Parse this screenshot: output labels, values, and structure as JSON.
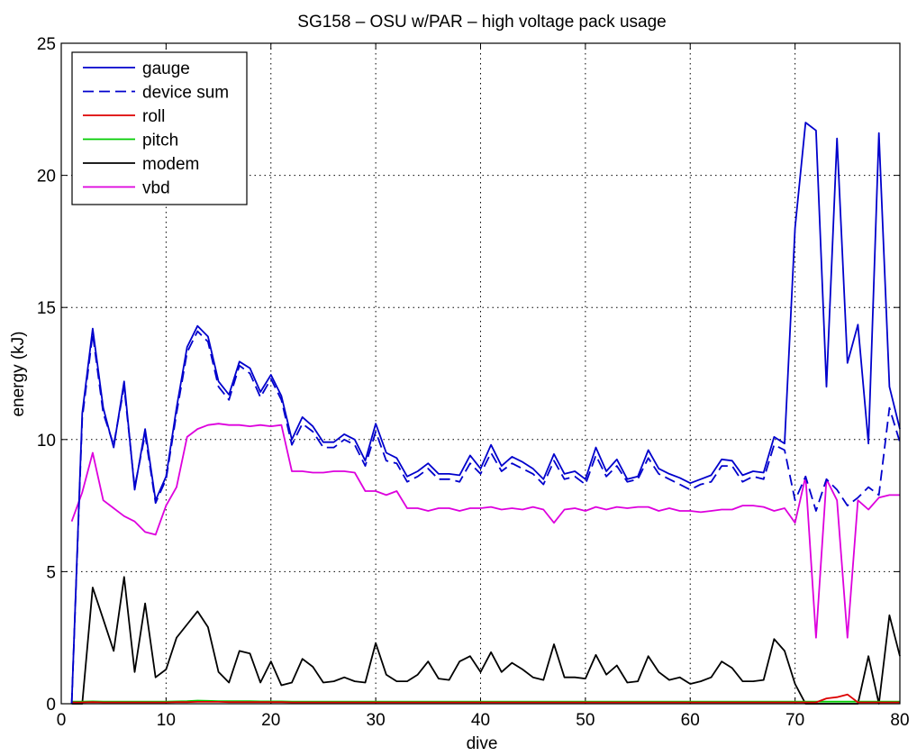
{
  "chart_data": {
    "type": "line",
    "title": "SG158 – OSU w/PAR – high voltage pack usage",
    "xlabel": "dive",
    "ylabel": "energy (kJ)",
    "xlim": [
      0,
      80
    ],
    "ylim": [
      0,
      25
    ],
    "xticks": [
      0,
      10,
      20,
      30,
      40,
      50,
      60,
      70,
      80
    ],
    "yticks": [
      0,
      5,
      10,
      15,
      20,
      25
    ],
    "grid": true,
    "legend_position": "top-left",
    "x": [
      1,
      2,
      3,
      4,
      5,
      6,
      7,
      8,
      9,
      10,
      11,
      12,
      13,
      14,
      15,
      16,
      17,
      18,
      19,
      20,
      21,
      22,
      23,
      24,
      25,
      26,
      27,
      28,
      29,
      30,
      31,
      32,
      33,
      34,
      35,
      36,
      37,
      38,
      39,
      40,
      41,
      42,
      43,
      44,
      45,
      46,
      47,
      48,
      49,
      50,
      51,
      52,
      53,
      54,
      55,
      56,
      57,
      58,
      59,
      60,
      61,
      62,
      63,
      64,
      65,
      66,
      67,
      68,
      69,
      70,
      71,
      72,
      73,
      74,
      75,
      76,
      77,
      78,
      79,
      80
    ],
    "series": [
      {
        "name": "gauge",
        "color": "#0000cc",
        "style": "solid",
        "values": [
          0,
          11,
          14.2,
          11.2,
          9.7,
          12.2,
          8.1,
          10.4,
          7.7,
          8.6,
          11.2,
          13.5,
          14.3,
          13.9,
          12.2,
          11.7,
          12.95,
          12.7,
          11.8,
          12.45,
          11.65,
          10,
          10.85,
          10.5,
          9.9,
          9.9,
          10.2,
          10,
          9.2,
          10.6,
          9.5,
          9.3,
          8.6,
          8.8,
          9.1,
          8.7,
          8.7,
          8.65,
          9.4,
          8.9,
          9.8,
          9,
          9.35,
          9.15,
          8.9,
          8.5,
          9.45,
          8.7,
          8.8,
          8.5,
          9.7,
          8.8,
          9.25,
          8.5,
          8.6,
          9.6,
          8.9,
          8.7,
          8.55,
          8.35,
          8.5,
          8.65,
          9.25,
          9.2,
          8.65,
          8.8,
          8.75,
          10.1,
          9.85,
          18,
          22,
          21.7,
          12,
          21.4,
          12.9,
          14.35,
          9.85,
          21.6,
          12,
          10.4
        ]
      },
      {
        "name": "device sum",
        "color": "#0000cc",
        "style": "dashed",
        "values": [
          0,
          10.8,
          14,
          11,
          9.8,
          12,
          8.2,
          10.2,
          7.6,
          8.5,
          11,
          13.3,
          14.1,
          13.7,
          12,
          11.5,
          12.8,
          12.5,
          11.6,
          12.3,
          11.5,
          9.8,
          10.6,
          10.3,
          9.7,
          9.7,
          10,
          9.8,
          9,
          10.3,
          9.2,
          9.1,
          8.4,
          8.6,
          8.9,
          8.5,
          8.5,
          8.4,
          9.1,
          8.7,
          9.5,
          8.8,
          9.1,
          8.9,
          8.7,
          8.3,
          9.2,
          8.5,
          8.6,
          8.3,
          9.4,
          8.6,
          9,
          8.4,
          8.5,
          9.3,
          8.7,
          8.5,
          8.3,
          8.1,
          8.3,
          8.4,
          9,
          9,
          8.4,
          8.6,
          8.5,
          9.8,
          9.6,
          7.7,
          8.6,
          7.3,
          8.5,
          8.1,
          7.5,
          7.8,
          8.2,
          7.9,
          11.2,
          9.9
        ]
      },
      {
        "name": "roll",
        "color": "#dd0000",
        "style": "solid",
        "values": [
          0.05,
          0.05,
          0.06,
          0.05,
          0.05,
          0.05,
          0.05,
          0.05,
          0.05,
          0.05,
          0.06,
          0.06,
          0.07,
          0.07,
          0.07,
          0.06,
          0.06,
          0.06,
          0.06,
          0.06,
          0.06,
          0.05,
          0.05,
          0.05,
          0.05,
          0.05,
          0.05,
          0.05,
          0.05,
          0.05,
          0.05,
          0.05,
          0.05,
          0.05,
          0.05,
          0.05,
          0.05,
          0.05,
          0.05,
          0.05,
          0.05,
          0.05,
          0.05,
          0.05,
          0.05,
          0.05,
          0.05,
          0.05,
          0.05,
          0.05,
          0.05,
          0.05,
          0.05,
          0.05,
          0.05,
          0.05,
          0.05,
          0.05,
          0.05,
          0.05,
          0.05,
          0.05,
          0.05,
          0.05,
          0.05,
          0.05,
          0.05,
          0.05,
          0.05,
          0.05,
          0.05,
          0.05,
          0.2,
          0.25,
          0.35,
          0.05,
          0.05,
          0.05,
          0.05,
          0.05
        ]
      },
      {
        "name": "pitch",
        "color": "#00cc00",
        "style": "solid",
        "values": [
          0.08,
          0.08,
          0.09,
          0.08,
          0.08,
          0.08,
          0.08,
          0.08,
          0.08,
          0.08,
          0.09,
          0.1,
          0.12,
          0.11,
          0.1,
          0.1,
          0.1,
          0.1,
          0.09,
          0.09,
          0.09,
          0.08,
          0.08,
          0.08,
          0.08,
          0.08,
          0.08,
          0.08,
          0.08,
          0.08,
          0.08,
          0.08,
          0.08,
          0.08,
          0.08,
          0.08,
          0.08,
          0.08,
          0.08,
          0.08,
          0.08,
          0.08,
          0.08,
          0.08,
          0.08,
          0.08,
          0.08,
          0.08,
          0.08,
          0.08,
          0.08,
          0.08,
          0.08,
          0.08,
          0.08,
          0.08,
          0.08,
          0.08,
          0.08,
          0.08,
          0.08,
          0.08,
          0.08,
          0.08,
          0.08,
          0.08,
          0.08,
          0.08,
          0.08,
          0.08,
          0.08,
          0.08,
          0.08,
          0.08,
          0.08,
          0.08,
          0.08,
          0.08,
          0.08,
          0.08
        ]
      },
      {
        "name": "modem",
        "color": "#000000",
        "style": "solid",
        "values": [
          0,
          0,
          4.4,
          3.2,
          2,
          4.8,
          1.2,
          3.8,
          1,
          1.3,
          2.5,
          3,
          3.5,
          2.9,
          1.2,
          0.8,
          2,
          1.9,
          0.8,
          1.6,
          0.7,
          0.8,
          1.7,
          1.4,
          0.8,
          0.85,
          1,
          0.85,
          0.8,
          2.3,
          1.1,
          0.85,
          0.85,
          1.1,
          1.6,
          0.95,
          0.9,
          1.6,
          1.8,
          1.2,
          1.95,
          1.2,
          1.55,
          1.3,
          1,
          0.9,
          2.25,
          1,
          1,
          0.95,
          1.85,
          1.1,
          1.45,
          0.8,
          0.85,
          1.8,
          1.2,
          0.9,
          1,
          0.75,
          0.85,
          1,
          1.6,
          1.35,
          0.85,
          0.85,
          0.9,
          2.45,
          2,
          0.75,
          0,
          0,
          0,
          0,
          0,
          0,
          1.8,
          0,
          3.35,
          1.8
        ]
      },
      {
        "name": "vbd",
        "color": "#dd00dd",
        "style": "solid",
        "values": [
          6.9,
          8,
          9.5,
          7.7,
          7.4,
          7.1,
          6.9,
          6.5,
          6.4,
          7.5,
          8.2,
          10.1,
          10.4,
          10.55,
          10.6,
          10.55,
          10.55,
          10.5,
          10.55,
          10.5,
          10.55,
          8.8,
          8.8,
          8.75,
          8.75,
          8.8,
          8.8,
          8.75,
          8.05,
          8.05,
          7.9,
          8.05,
          7.4,
          7.4,
          7.3,
          7.4,
          7.4,
          7.3,
          7.4,
          7.4,
          7.45,
          7.35,
          7.4,
          7.35,
          7.45,
          7.35,
          6.85,
          7.35,
          7.4,
          7.3,
          7.45,
          7.35,
          7.45,
          7.4,
          7.45,
          7.45,
          7.3,
          7.4,
          7.3,
          7.3,
          7.25,
          7.3,
          7.35,
          7.35,
          7.5,
          7.5,
          7.45,
          7.3,
          7.4,
          6.85,
          8.6,
          2.5,
          8.5,
          7.7,
          2.5,
          7.7,
          7.35,
          7.8,
          7.9,
          7.9
        ]
      }
    ]
  }
}
